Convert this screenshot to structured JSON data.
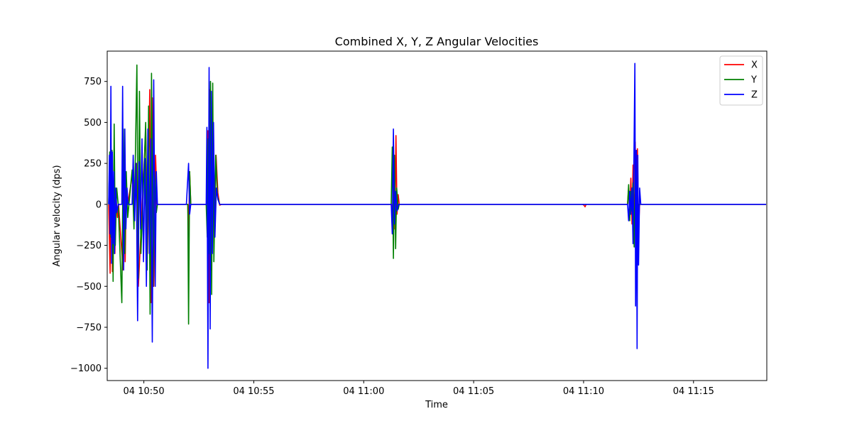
{
  "chart_data": {
    "type": "line",
    "title": "Combined X, Y, Z Angular Velocities",
    "xlabel": "Time",
    "ylabel": "Angular velocity (dps)",
    "x_range": [
      "04 10:48:20",
      "04 11:18:20"
    ],
    "ylim": [
      -1075,
      935
    ],
    "x_ticks": [
      {
        "time": "04 10:50:00",
        "label": "04 10:50"
      },
      {
        "time": "04 10:55:00",
        "label": "04 10:55"
      },
      {
        "time": "04 11:00:00",
        "label": "04 11:00"
      },
      {
        "time": "04 11:05:00",
        "label": "04 11:05"
      },
      {
        "time": "04 11:10:00",
        "label": "04 11:10"
      },
      {
        "time": "04 11:15:00",
        "label": "04 11:15"
      }
    ],
    "y_ticks": [
      {
        "value": 750,
        "label": "750"
      },
      {
        "value": 500,
        "label": "500"
      },
      {
        "value": 250,
        "label": "250"
      },
      {
        "value": 0,
        "label": "0"
      },
      {
        "value": -250,
        "label": "−250"
      },
      {
        "value": -500,
        "label": "−500"
      },
      {
        "value": -750,
        "label": "−750"
      },
      {
        "value": -1000,
        "label": "−1000"
      }
    ],
    "grid": false,
    "legend_position": "top-right",
    "series": [
      {
        "name": "X",
        "color": "#ff0000",
        "points": [
          [
            "04 10:48:24",
            0
          ],
          [
            "04 10:48:28",
            -420
          ],
          [
            "04 10:48:31",
            300
          ],
          [
            "04 10:48:34",
            -410
          ],
          [
            "04 10:48:37",
            30
          ],
          [
            "04 10:48:41",
            -300
          ],
          [
            "04 10:48:44",
            40
          ],
          [
            "04 10:48:48",
            -80
          ],
          [
            "04 10:48:51",
            0
          ],
          [
            "04 10:49:03",
            -400
          ],
          [
            "04 10:49:06",
            200
          ],
          [
            "04 10:49:09",
            -350
          ],
          [
            "04 10:49:12",
            100
          ],
          [
            "04 10:49:16",
            0
          ],
          [
            "04 10:49:30",
            200
          ],
          [
            "04 10:49:34",
            -100
          ],
          [
            "04 10:49:40",
            250
          ],
          [
            "04 10:49:45",
            -500
          ],
          [
            "04 10:50:05",
            450
          ],
          [
            "04 10:50:10",
            -300
          ],
          [
            "04 10:50:16",
            700
          ],
          [
            "04 10:50:20",
            -600
          ],
          [
            "04 10:50:23",
            650
          ],
          [
            "04 10:50:27",
            -500
          ],
          [
            "04 10:50:32",
            300
          ],
          [
            "04 10:50:36",
            0
          ],
          [
            "04 10:52:00",
            0
          ],
          [
            "04 10:52:02",
            -200
          ],
          [
            "04 10:52:05",
            200
          ],
          [
            "04 10:52:08",
            0
          ],
          [
            "04 10:52:52",
            0
          ],
          [
            "04 10:52:55",
            450
          ],
          [
            "04 10:52:58",
            -600
          ],
          [
            "04 10:53:01",
            700
          ],
          [
            "04 10:53:04",
            -400
          ],
          [
            "04 10:53:08",
            500
          ],
          [
            "04 10:53:12",
            -200
          ],
          [
            "04 10:53:17",
            300
          ],
          [
            "04 10:53:22",
            70
          ],
          [
            "04 10:53:27",
            -5
          ],
          [
            "04 10:53:32",
            0
          ],
          [
            "04 11:01:16",
            0
          ],
          [
            "04 11:01:19",
            -150
          ],
          [
            "04 11:01:22",
            300
          ],
          [
            "04 11:01:25",
            -150
          ],
          [
            "04 11:01:28",
            420
          ],
          [
            "04 11:01:31",
            -60
          ],
          [
            "04 11:01:34",
            60
          ],
          [
            "04 11:01:37",
            0
          ],
          [
            "04 11:09:57",
            0
          ],
          [
            "04 11:10:01",
            -5
          ],
          [
            "04 11:10:04",
            -15
          ],
          [
            "04 11:10:07",
            0
          ],
          [
            "04 11:12:00",
            0
          ],
          [
            "04 11:12:03",
            100
          ],
          [
            "04 11:12:06",
            -80
          ],
          [
            "04 11:12:09",
            160
          ],
          [
            "04 11:12:12",
            -120
          ],
          [
            "04 11:12:15",
            240
          ],
          [
            "04 11:12:18",
            -200
          ],
          [
            "04 11:12:21",
            380
          ],
          [
            "04 11:12:24",
            -330
          ],
          [
            "04 11:12:27",
            340
          ],
          [
            "04 11:12:30",
            -150
          ],
          [
            "04 11:12:33",
            0
          ],
          [
            "04 11:18:18",
            0
          ]
        ]
      },
      {
        "name": "Y",
        "color": "#008000",
        "points": [
          [
            "04 10:48:24",
            0
          ],
          [
            "04 10:48:27",
            320
          ],
          [
            "04 10:48:30",
            -200
          ],
          [
            "04 10:48:33",
            330
          ],
          [
            "04 10:48:36",
            -470
          ],
          [
            "04 10:48:39",
            490
          ],
          [
            "04 10:48:42",
            -250
          ],
          [
            "04 10:48:46",
            100
          ],
          [
            "04 10:48:50",
            0
          ],
          [
            "04 10:49:00",
            -600
          ],
          [
            "04 10:49:04",
            460
          ],
          [
            "04 10:49:08",
            -300
          ],
          [
            "04 10:49:12",
            200
          ],
          [
            "04 10:49:16",
            -80
          ],
          [
            "04 10:49:28",
            210
          ],
          [
            "04 10:49:33",
            -150
          ],
          [
            "04 10:49:37",
            300
          ],
          [
            "04 10:49:41",
            850
          ],
          [
            "04 10:49:45",
            -450
          ],
          [
            "04 10:49:48",
            690
          ],
          [
            "04 10:49:52",
            -300
          ],
          [
            "04 10:50:05",
            500
          ],
          [
            "04 10:50:09",
            -400
          ],
          [
            "04 10:50:13",
            600
          ],
          [
            "04 10:50:17",
            -670
          ],
          [
            "04 10:50:21",
            800
          ],
          [
            "04 10:50:25",
            -500
          ],
          [
            "04 10:50:29",
            200
          ],
          [
            "04 10:50:34",
            -50
          ],
          [
            "04 10:50:37",
            0
          ],
          [
            "04 10:52:00",
            0
          ],
          [
            "04 10:52:02",
            -730
          ],
          [
            "04 10:52:05",
            200
          ],
          [
            "04 10:52:08",
            0
          ],
          [
            "04 10:52:50",
            0
          ],
          [
            "04 10:52:53",
            -200
          ],
          [
            "04 10:52:56",
            400
          ],
          [
            "04 10:52:59",
            -300
          ],
          [
            "04 10:53:02",
            750
          ],
          [
            "04 10:53:05",
            -550
          ],
          [
            "04 10:53:08",
            740
          ],
          [
            "04 10:53:11",
            -350
          ],
          [
            "04 10:53:16",
            300
          ],
          [
            "04 10:53:21",
            50
          ],
          [
            "04 10:53:27",
            0
          ],
          [
            "04 11:01:15",
            0
          ],
          [
            "04 11:01:18",
            350
          ],
          [
            "04 11:01:21",
            -330
          ],
          [
            "04 11:01:24",
            300
          ],
          [
            "04 11:01:27",
            -270
          ],
          [
            "04 11:01:30",
            100
          ],
          [
            "04 11:01:34",
            -30
          ],
          [
            "04 11:01:37",
            0
          ],
          [
            "04 11:12:00",
            0
          ],
          [
            "04 11:12:03",
            120
          ],
          [
            "04 11:12:06",
            -100
          ],
          [
            "04 11:12:09",
            80
          ],
          [
            "04 11:12:12",
            -40
          ],
          [
            "04 11:12:15",
            130
          ],
          [
            "04 11:12:18",
            -260
          ],
          [
            "04 11:12:21",
            200
          ],
          [
            "04 11:12:25",
            -100
          ],
          [
            "04 11:12:30",
            0
          ],
          [
            "04 11:18:18",
            0
          ]
        ]
      },
      {
        "name": "Z",
        "color": "#0000ff",
        "points": [
          [
            "04 10:48:24",
            0
          ],
          [
            "04 10:48:26",
            300
          ],
          [
            "04 10:48:28",
            -180
          ],
          [
            "04 10:48:30",
            720
          ],
          [
            "04 10:48:32",
            -360
          ],
          [
            "04 10:48:34",
            320
          ],
          [
            "04 10:48:36",
            -240
          ],
          [
            "04 10:48:38",
            200
          ],
          [
            "04 10:48:40",
            -300
          ],
          [
            "04 10:48:43",
            100
          ],
          [
            "04 10:48:46",
            -50
          ],
          [
            "04 10:48:50",
            0
          ],
          [
            "04 10:49:00",
            0
          ],
          [
            "04 10:49:02",
            720
          ],
          [
            "04 10:49:05",
            -400
          ],
          [
            "04 10:49:08",
            460
          ],
          [
            "04 10:49:11",
            -150
          ],
          [
            "04 10:49:14",
            100
          ],
          [
            "04 10:49:17",
            0
          ],
          [
            "04 10:49:28",
            0
          ],
          [
            "04 10:49:31",
            300
          ],
          [
            "04 10:49:35",
            -100
          ],
          [
            "04 10:49:39",
            250
          ],
          [
            "04 10:49:43",
            -710
          ],
          [
            "04 10:49:47",
            260
          ],
          [
            "04 10:49:51",
            -150
          ],
          [
            "04 10:49:55",
            400
          ],
          [
            "04 10:49:59",
            -350
          ],
          [
            "04 10:50:03",
            280
          ],
          [
            "04 10:50:07",
            -500
          ],
          [
            "04 10:50:11",
            460
          ],
          [
            "04 10:50:15",
            -300
          ],
          [
            "04 10:50:19",
            400
          ],
          [
            "04 10:50:23",
            -840
          ],
          [
            "04 10:50:27",
            760
          ],
          [
            "04 10:50:31",
            -500
          ],
          [
            "04 10:50:34",
            200
          ],
          [
            "04 10:50:37",
            0
          ],
          [
            "04 10:51:56",
            0
          ],
          [
            "04 10:51:59",
            120
          ],
          [
            "04 10:52:02",
            250
          ],
          [
            "04 10:52:05",
            -60
          ],
          [
            "04 10:52:08",
            0
          ],
          [
            "04 10:52:50",
            0
          ],
          [
            "04 10:52:52",
            470
          ],
          [
            "04 10:52:55",
            -1000
          ],
          [
            "04 10:52:58",
            835
          ],
          [
            "04 10:53:01",
            -760
          ],
          [
            "04 10:53:04",
            690
          ],
          [
            "04 10:53:07",
            -300
          ],
          [
            "04 10:53:10",
            500
          ],
          [
            "04 10:53:14",
            -200
          ],
          [
            "04 10:53:18",
            100
          ],
          [
            "04 10:53:22",
            30
          ],
          [
            "04 10:53:27",
            0
          ],
          [
            "04 11:01:15",
            0
          ],
          [
            "04 11:01:18",
            -180
          ],
          [
            "04 11:01:21",
            460
          ],
          [
            "04 11:01:24",
            -120
          ],
          [
            "04 11:01:27",
            80
          ],
          [
            "04 11:01:31",
            -40
          ],
          [
            "04 11:01:35",
            0
          ],
          [
            "04 11:12:00",
            0
          ],
          [
            "04 11:12:03",
            -100
          ],
          [
            "04 11:12:06",
            80
          ],
          [
            "04 11:12:09",
            -60
          ],
          [
            "04 11:12:12",
            100
          ],
          [
            "04 11:12:15",
            -240
          ],
          [
            "04 11:12:18",
            430
          ],
          [
            "04 11:12:20",
            860
          ],
          [
            "04 11:12:22",
            -620
          ],
          [
            "04 11:12:24",
            330
          ],
          [
            "04 11:12:26",
            -880
          ],
          [
            "04 11:12:28",
            300
          ],
          [
            "04 11:12:30",
            -370
          ],
          [
            "04 11:12:33",
            100
          ],
          [
            "04 11:12:36",
            0
          ],
          [
            "04 11:18:18",
            0
          ]
        ]
      }
    ]
  }
}
